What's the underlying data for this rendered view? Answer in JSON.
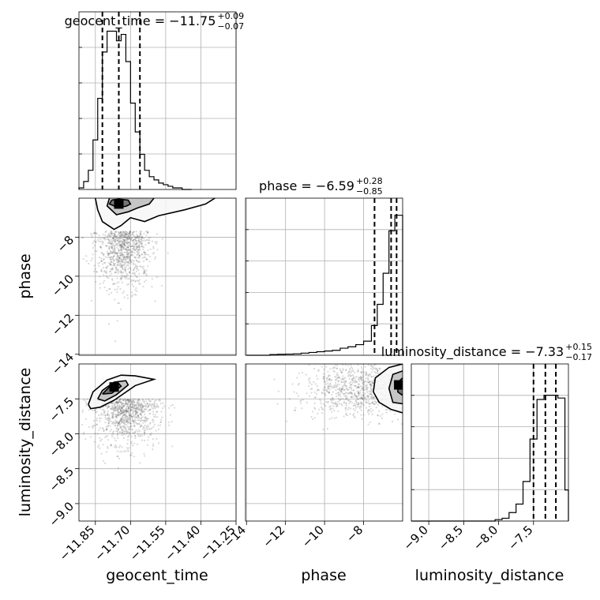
{
  "chart_data": {
    "type": "corner",
    "parameters": [
      "geocent_time",
      "phase",
      "luminosity_distance"
    ],
    "titles": [
      {
        "label": "geocent_time = −11.75",
        "sup": "+0.09",
        "sub": "−0.07"
      },
      {
        "label": "phase = −6.59",
        "sup": "+0.28",
        "sub": "−0.85"
      },
      {
        "label": "luminosity_distance = −7.33",
        "sup": "+0.15",
        "sub": "−0.17"
      }
    ],
    "axes": {
      "geocent_time": {
        "range": [
          -11.92,
          -11.25
        ],
        "ticks": [
          -11.85,
          -11.7,
          -11.55,
          -11.4,
          -11.25
        ],
        "tick_labels": [
          "−11.85",
          "−11.70",
          "−11.55",
          "−11.40",
          "−11.25"
        ]
      },
      "phase": {
        "range": [
          -14.05,
          -6.0
        ],
        "ticks": [
          -14,
          -12,
          -10,
          -8
        ],
        "tick_labels": [
          "−14",
          "−12",
          "−10",
          "−8"
        ]
      },
      "luminosity_distance": {
        "range": [
          -9.25,
          -7.0
        ],
        "ticks": [
          -9.0,
          -8.5,
          -8.0,
          -7.5
        ],
        "tick_labels": [
          "−9.0",
          "−8.5",
          "−8.0",
          "−7.5"
        ]
      }
    },
    "diagonal_histograms": [
      {
        "param": "geocent_time",
        "bin_edges": [
          -11.92,
          -11.9,
          -11.88,
          -11.86,
          -11.84,
          -11.82,
          -11.8,
          -11.78,
          -11.76,
          -11.74,
          -11.72,
          -11.7,
          -11.68,
          -11.66,
          -11.64,
          -11.62,
          -11.6,
          -11.58,
          -11.56,
          -11.54,
          -11.52,
          -11.5,
          -11.48,
          -11.46,
          -11.44
        ],
        "counts": [
          0.01,
          0.05,
          0.12,
          0.31,
          0.57,
          0.86,
          0.99,
          0.99,
          0.93,
          0.97,
          0.8,
          0.54,
          0.36,
          0.22,
          0.12,
          0.08,
          0.06,
          0.04,
          0.03,
          0.02,
          0.01,
          0.01,
          0,
          0
        ],
        "quantiles": [
          -11.82,
          -11.75,
          -11.66
        ]
      },
      {
        "param": "phase",
        "bin_edges": [
          -14.0,
          -13.6,
          -13.2,
          -12.8,
          -12.4,
          -12.0,
          -11.6,
          -11.2,
          -10.8,
          -10.4,
          -10.0,
          -9.6,
          -9.2,
          -8.8,
          -8.4,
          -8.0,
          -7.6,
          -7.3,
          -7.0,
          -6.7,
          -6.4,
          -6.0
        ],
        "counts": [
          0.0,
          0.0,
          0.0,
          0.005,
          0.007,
          0.008,
          0.01,
          0.015,
          0.02,
          0.025,
          0.03,
          0.035,
          0.05,
          0.06,
          0.075,
          0.1,
          0.21,
          0.36,
          0.58,
          0.88,
          0.99
        ],
        "quantiles": [
          -7.44,
          -6.59,
          -6.31
        ]
      },
      {
        "param": "luminosity_distance",
        "bin_edges": [
          -9.25,
          -9.1,
          -8.95,
          -8.8,
          -8.65,
          -8.5,
          -8.35,
          -8.2,
          -8.05,
          -7.95,
          -7.85,
          -7.75,
          -7.65,
          -7.55,
          -7.45,
          -7.35,
          -7.25,
          -7.15,
          -7.05,
          -7.0
        ],
        "counts": [
          0,
          0,
          0,
          0,
          0,
          0,
          0,
          0,
          0.01,
          0.02,
          0.06,
          0.12,
          0.28,
          0.58,
          0.86,
          0.89,
          0.89,
          0.87,
          0.22
        ],
        "quantiles": [
          -7.5,
          -7.33,
          -7.18
        ]
      }
    ],
    "joint_panels": [
      {
        "x": "geocent_time",
        "y": "phase",
        "peak": {
          "x": -11.75,
          "y": -6.3
        },
        "contours": [
          [
            [
              -11.85,
              -6.0
            ],
            [
              -11.84,
              -6.6
            ],
            [
              -11.82,
              -7.2
            ],
            [
              -11.77,
              -7.6
            ],
            [
              -11.74,
              -7.4
            ],
            [
              -11.7,
              -7.0
            ],
            [
              -11.64,
              -7.2
            ],
            [
              -11.58,
              -6.9
            ],
            [
              -11.47,
              -6.6
            ],
            [
              -11.38,
              -6.3
            ],
            [
              -11.34,
              -6.0
            ]
          ],
          [
            [
              -11.79,
              -6.0
            ],
            [
              -11.8,
              -6.4
            ],
            [
              -11.76,
              -6.85
            ],
            [
              -11.71,
              -6.7
            ],
            [
              -11.67,
              -6.5
            ],
            [
              -11.62,
              -6.3
            ],
            [
              -11.6,
              -6.0
            ]
          ],
          [
            [
              -11.78,
              -6.1
            ],
            [
              -11.79,
              -6.3
            ],
            [
              -11.76,
              -6.45
            ],
            [
              -11.72,
              -6.42
            ],
            [
              -11.7,
              -6.3
            ],
            [
              -11.71,
              -6.1
            ],
            [
              -11.75,
              -6.05
            ],
            [
              -11.78,
              -6.1
            ]
          ]
        ],
        "scatter_center": {
          "x": -11.73,
          "y": -7.7
        },
        "scatter_spread": {
          "x": 0.06,
          "y": 1.4
        }
      },
      {
        "x": "geocent_time",
        "y": "luminosity_distance",
        "peak": {
          "x": -11.77,
          "y": -7.33
        },
        "contours": [
          [
            [
              -11.88,
              -7.58
            ],
            [
              -11.86,
              -7.4
            ],
            [
              -11.8,
              -7.23
            ],
            [
              -11.74,
              -7.16
            ],
            [
              -11.68,
              -7.17
            ],
            [
              -11.6,
              -7.22
            ],
            [
              -11.68,
              -7.31
            ],
            [
              -11.77,
              -7.52
            ],
            [
              -11.83,
              -7.62
            ],
            [
              -11.87,
              -7.64
            ],
            [
              -11.88,
              -7.58
            ]
          ],
          [
            [
              -11.84,
              -7.5
            ],
            [
              -11.82,
              -7.38
            ],
            [
              -11.77,
              -7.26
            ],
            [
              -11.72,
              -7.24
            ],
            [
              -11.71,
              -7.3
            ],
            [
              -11.76,
              -7.44
            ],
            [
              -11.81,
              -7.53
            ],
            [
              -11.84,
              -7.5
            ]
          ],
          [
            [
              -11.82,
              -7.43
            ],
            [
              -11.79,
              -7.33
            ],
            [
              -11.75,
              -7.28
            ],
            [
              -11.74,
              -7.32
            ],
            [
              -11.78,
              -7.42
            ],
            [
              -11.82,
              -7.43
            ]
          ]
        ],
        "scatter_center": {
          "x": -11.72,
          "y": -7.5
        },
        "scatter_spread": {
          "x": 0.07,
          "y": 0.35
        }
      },
      {
        "x": "phase",
        "y": "luminosity_distance",
        "peak": {
          "x": -6.2,
          "y": -7.3
        },
        "contours": [
          [
            [
              -6.0,
              -7.0
            ],
            [
              -6.7,
              -7.05
            ],
            [
              -7.4,
              -7.2
            ],
            [
              -7.5,
              -7.4
            ],
            [
              -7.2,
              -7.55
            ],
            [
              -6.6,
              -7.65
            ],
            [
              -6.0,
              -7.7
            ]
          ],
          [
            [
              -6.0,
              -7.1
            ],
            [
              -6.5,
              -7.15
            ],
            [
              -6.7,
              -7.35
            ],
            [
              -6.5,
              -7.55
            ],
            [
              -6.0,
              -7.57
            ]
          ],
          [
            [
              -6.0,
              -7.2
            ],
            [
              -6.2,
              -7.25
            ],
            [
              -6.25,
              -7.4
            ],
            [
              -6.0,
              -7.45
            ]
          ]
        ],
        "scatter_center": {
          "x": -8.2,
          "y": -7.35
        },
        "scatter_spread": {
          "x": 1.4,
          "y": 0.3
        }
      }
    ],
    "grid": true
  }
}
